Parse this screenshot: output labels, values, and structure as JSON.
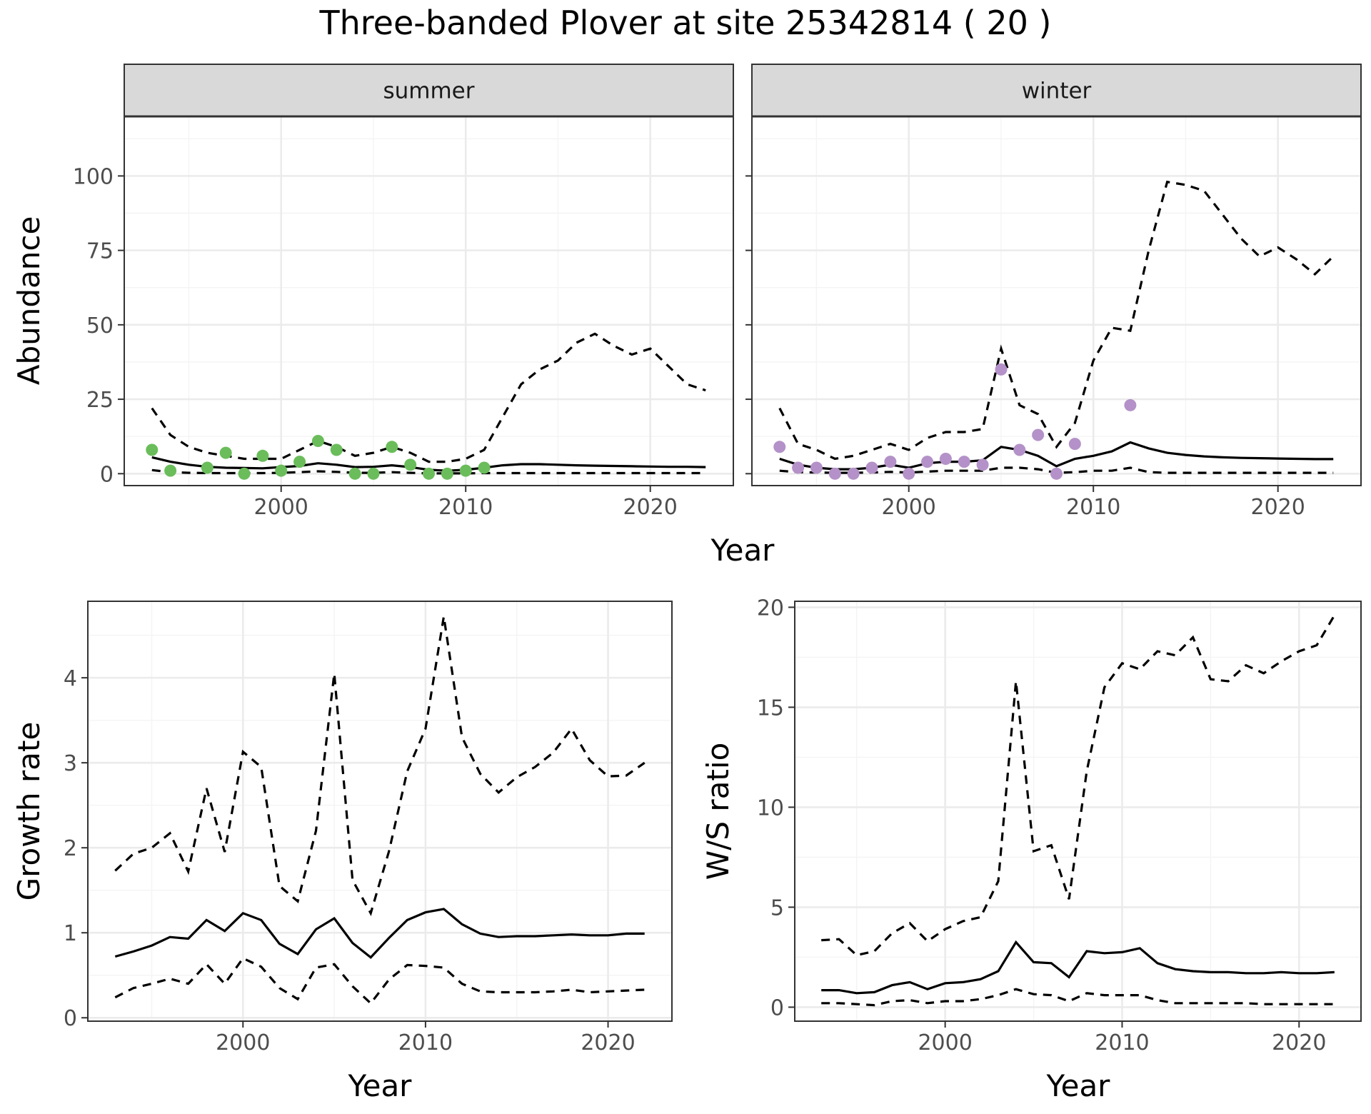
{
  "title": "Three-banded Plover at site 25342814 ( 20 )",
  "colors": {
    "summer_points": "#6ABD5A",
    "winter_points": "#B491C8",
    "strip_bg": "#d9d9d9"
  },
  "chart_data": [
    {
      "type": "line",
      "facet": "summer",
      "xlabel": "Year",
      "ylabel": "Abundance",
      "xlim": [
        1991.5,
        2024.5
      ],
      "ylim": [
        -4,
        120
      ],
      "x_ticks": [
        2000,
        2010,
        2020
      ],
      "y_ticks": [
        0,
        25,
        50,
        75,
        100
      ],
      "series": [
        {
          "role": "estimate",
          "x": [
            1993,
            1994,
            1995,
            1996,
            1997,
            1998,
            1999,
            2000,
            2001,
            2002,
            2003,
            2004,
            2005,
            2006,
            2007,
            2008,
            2009,
            2010,
            2011,
            2012,
            2013,
            2014,
            2015,
            2016,
            2017,
            2018,
            2019,
            2020,
            2021,
            2022,
            2023
          ],
          "values": [
            5.5,
            4,
            3,
            2.3,
            2,
            1.9,
            1.8,
            2.2,
            2.6,
            3.5,
            3,
            2.2,
            2.3,
            2.8,
            2.2,
            1.3,
            1,
            1.3,
            2,
            2.8,
            3.2,
            3.2,
            3,
            2.8,
            2.7,
            2.6,
            2.5,
            2.4,
            2.3,
            2.3,
            2.2
          ]
        },
        {
          "role": "upper",
          "x": [
            1993,
            1994,
            1995,
            1996,
            1997,
            1998,
            1999,
            2000,
            2001,
            2002,
            2003,
            2004,
            2005,
            2006,
            2007,
            2008,
            2009,
            2010,
            2011,
            2012,
            2013,
            2014,
            2015,
            2016,
            2017,
            2018,
            2019,
            2020,
            2021,
            2022,
            2023
          ],
          "values": [
            22,
            13,
            9,
            7,
            6,
            5,
            5,
            5,
            8,
            11,
            9,
            6,
            7,
            9,
            7,
            4,
            4,
            5,
            8,
            19,
            30,
            35,
            38,
            44,
            47,
            43,
            40,
            42,
            36,
            30,
            28
          ]
        },
        {
          "role": "lower",
          "x": [
            1993,
            1994,
            1995,
            1996,
            1997,
            1998,
            1999,
            2000,
            2001,
            2002,
            2003,
            2004,
            2005,
            2006,
            2007,
            2008,
            2009,
            2010,
            2011,
            2012,
            2013,
            2014,
            2015,
            2016,
            2017,
            2018,
            2019,
            2020,
            2021,
            2022,
            2023
          ],
          "values": [
            1.2,
            0.5,
            0.3,
            0.2,
            0.2,
            0.2,
            0.2,
            0.3,
            0.5,
            0.8,
            0.6,
            0.3,
            0.3,
            0.5,
            0.3,
            0.1,
            0.1,
            0.1,
            0.2,
            0.2,
            0.2,
            0.2,
            0.2,
            0.2,
            0.2,
            0.2,
            0.2,
            0.2,
            0.2,
            0.2,
            0.2
          ]
        }
      ],
      "points": {
        "x": [
          1993,
          1994,
          1996,
          1997,
          1998,
          1999,
          2000,
          2001,
          2002,
          2003,
          2004,
          2005,
          2006,
          2007,
          2008,
          2009,
          2010,
          2011
        ],
        "y": [
          8,
          1,
          2,
          7,
          0,
          6,
          1,
          4,
          11,
          8,
          0,
          0,
          9,
          3,
          0,
          0,
          1,
          2
        ]
      }
    },
    {
      "type": "line",
      "facet": "winter",
      "xlabel": "Year",
      "ylabel": "Abundance",
      "xlim": [
        1991.5,
        2024.5
      ],
      "ylim": [
        -4,
        120
      ],
      "x_ticks": [
        2000,
        2010,
        2020
      ],
      "y_ticks": [
        0,
        25,
        50,
        75,
        100
      ],
      "series": [
        {
          "role": "estimate",
          "x": [
            1993,
            1994,
            1995,
            1996,
            1997,
            1998,
            1999,
            2000,
            2001,
            2002,
            2003,
            2004,
            2005,
            2006,
            2007,
            2008,
            2009,
            2010,
            2011,
            2012,
            2013,
            2014,
            2015,
            2016,
            2017,
            2018,
            2019,
            2020,
            2021,
            2022,
            2023
          ],
          "values": [
            5,
            3,
            2,
            1.5,
            1.5,
            2,
            3,
            2,
            3.5,
            4,
            4,
            4.5,
            9,
            8,
            6,
            2.5,
            5,
            6,
            7.5,
            10.5,
            8.5,
            7,
            6.3,
            5.8,
            5.5,
            5.3,
            5.2,
            5.1,
            5,
            4.9,
            4.9
          ]
        },
        {
          "role": "upper",
          "x": [
            1993,
            1994,
            1995,
            1996,
            1997,
            1998,
            1999,
            2000,
            2001,
            2002,
            2003,
            2004,
            2005,
            2006,
            2007,
            2008,
            2009,
            2010,
            2011,
            2012,
            2013,
            2014,
            2015,
            2016,
            2017,
            2018,
            2019,
            2020,
            2021,
            2022,
            2023
          ],
          "values": [
            22,
            10,
            8,
            5,
            6,
            8,
            10,
            8,
            12,
            14,
            14,
            15,
            42,
            23,
            20,
            9,
            17,
            38,
            49,
            48,
            75,
            98,
            97,
            95,
            87,
            79,
            73,
            76,
            72,
            67,
            73
          ]
        },
        {
          "role": "lower",
          "x": [
            1993,
            1994,
            1995,
            1996,
            1997,
            1998,
            1999,
            2000,
            2001,
            2002,
            2003,
            2004,
            2005,
            2006,
            2007,
            2008,
            2009,
            2010,
            2011,
            2012,
            2013,
            2014,
            2015,
            2016,
            2017,
            2018,
            2019,
            2020,
            2021,
            2022,
            2023
          ],
          "values": [
            1,
            0.5,
            0.4,
            0.3,
            0.3,
            0.4,
            0.6,
            0.4,
            0.7,
            1,
            1,
            1,
            2,
            2,
            1.5,
            0.3,
            0.5,
            1,
            1,
            2,
            0.5,
            0.3,
            0.3,
            0.3,
            0.3,
            0.3,
            0.3,
            0.3,
            0.3,
            0.3,
            0.3
          ]
        }
      ],
      "points": {
        "x": [
          1993,
          1994,
          1995,
          1996,
          1997,
          1998,
          1999,
          2000,
          2001,
          2002,
          2003,
          2004,
          2005,
          2006,
          2007,
          2008,
          2009,
          2012
        ],
        "y": [
          9,
          2,
          2,
          0,
          0,
          2,
          4,
          0,
          4,
          5,
          4,
          3,
          35,
          8,
          13,
          0,
          10,
          23
        ]
      }
    },
    {
      "type": "line",
      "xlabel": "Year",
      "ylabel": "Growth rate",
      "xlim": [
        1991.5,
        2023.5
      ],
      "ylim": [
        -0.04,
        4.9
      ],
      "x_ticks": [
        2000,
        2010,
        2020
      ],
      "y_ticks": [
        0,
        1,
        2,
        3,
        4
      ],
      "series": [
        {
          "role": "estimate",
          "x": [
            1993,
            1994,
            1995,
            1996,
            1997,
            1998,
            1999,
            2000,
            2001,
            2002,
            2003,
            2004,
            2005,
            2006,
            2007,
            2008,
            2009,
            2010,
            2011,
            2012,
            2013,
            2014,
            2015,
            2016,
            2017,
            2018,
            2019,
            2020,
            2021,
            2022
          ],
          "values": [
            0.72,
            0.78,
            0.85,
            0.95,
            0.93,
            1.15,
            1.02,
            1.23,
            1.15,
            0.87,
            0.75,
            1.04,
            1.17,
            0.88,
            0.71,
            0.94,
            1.15,
            1.24,
            1.28,
            1.1,
            0.99,
            0.95,
            0.96,
            0.96,
            0.97,
            0.98,
            0.97,
            0.97,
            0.99,
            0.99
          ]
        },
        {
          "role": "upper",
          "x": [
            1993,
            1994,
            1995,
            1996,
            1997,
            1998,
            1999,
            2000,
            2001,
            2002,
            2003,
            2004,
            2005,
            2006,
            2007,
            2008,
            2009,
            2010,
            2011,
            2012,
            2013,
            2014,
            2015,
            2016,
            2017,
            2018,
            2019,
            2020,
            2021,
            2022
          ],
          "values": [
            1.73,
            1.93,
            2.0,
            2.17,
            1.72,
            2.7,
            1.95,
            3.13,
            2.95,
            1.55,
            1.37,
            2.2,
            4.05,
            1.62,
            1.23,
            1.96,
            2.9,
            3.4,
            4.72,
            3.3,
            2.87,
            2.65,
            2.83,
            2.95,
            3.12,
            3.4,
            3.03,
            2.84,
            2.85,
            3.0
          ]
        },
        {
          "role": "lower",
          "x": [
            1993,
            1994,
            1995,
            1996,
            1997,
            1998,
            1999,
            2000,
            2001,
            2002,
            2003,
            2004,
            2005,
            2006,
            2007,
            2008,
            2009,
            2010,
            2011,
            2012,
            2013,
            2014,
            2015,
            2016,
            2017,
            2018,
            2019,
            2020,
            2021,
            2022
          ],
          "values": [
            0.24,
            0.35,
            0.4,
            0.46,
            0.4,
            0.63,
            0.4,
            0.7,
            0.6,
            0.35,
            0.22,
            0.59,
            0.63,
            0.37,
            0.17,
            0.45,
            0.62,
            0.61,
            0.59,
            0.4,
            0.31,
            0.3,
            0.3,
            0.3,
            0.31,
            0.33,
            0.3,
            0.31,
            0.32,
            0.33
          ]
        }
      ]
    },
    {
      "type": "line",
      "xlabel": "Year",
      "ylabel": "W/S ratio",
      "xlim": [
        1991.5,
        2023.5
      ],
      "ylim": [
        -0.7,
        20.3
      ],
      "x_ticks": [
        2000,
        2010,
        2020
      ],
      "y_ticks": [
        0,
        5,
        10,
        15,
        20
      ],
      "series": [
        {
          "role": "estimate",
          "x": [
            1993,
            1994,
            1995,
            1996,
            1997,
            1998,
            1999,
            2000,
            2001,
            2002,
            2003,
            2004,
            2005,
            2006,
            2007,
            2008,
            2009,
            2010,
            2011,
            2012,
            2013,
            2014,
            2015,
            2016,
            2017,
            2018,
            2019,
            2020,
            2021,
            2022
          ],
          "values": [
            0.85,
            0.85,
            0.7,
            0.75,
            1.1,
            1.25,
            0.9,
            1.2,
            1.25,
            1.4,
            1.8,
            3.25,
            2.25,
            2.2,
            1.5,
            2.8,
            2.7,
            2.75,
            2.95,
            2.2,
            1.9,
            1.8,
            1.75,
            1.75,
            1.7,
            1.7,
            1.75,
            1.7,
            1.7,
            1.75
          ]
        },
        {
          "role": "upper",
          "x": [
            1993,
            1994,
            1995,
            1996,
            1997,
            1998,
            1999,
            2000,
            2001,
            2002,
            2003,
            2004,
            2005,
            2006,
            2007,
            2008,
            2009,
            2010,
            2011,
            2012,
            2013,
            2014,
            2015,
            2016,
            2017,
            2018,
            2019,
            2020,
            2021,
            2022
          ],
          "values": [
            3.35,
            3.4,
            2.6,
            2.8,
            3.7,
            4.2,
            3.3,
            3.9,
            4.3,
            4.5,
            6.3,
            16.3,
            7.8,
            8.1,
            5.4,
            11.8,
            16.0,
            17.2,
            16.9,
            17.8,
            17.6,
            18.5,
            16.4,
            16.3,
            17.1,
            16.7,
            17.3,
            17.8,
            18.1,
            19.6
          ]
        },
        {
          "role": "lower",
          "x": [
            1993,
            1994,
            1995,
            1996,
            1997,
            1998,
            1999,
            2000,
            2001,
            2002,
            2003,
            2004,
            2005,
            2006,
            2007,
            2008,
            2009,
            2010,
            2011,
            2012,
            2013,
            2014,
            2015,
            2016,
            2017,
            2018,
            2019,
            2020,
            2021,
            2022
          ],
          "values": [
            0.2,
            0.2,
            0.15,
            0.1,
            0.3,
            0.35,
            0.2,
            0.3,
            0.3,
            0.4,
            0.6,
            0.9,
            0.65,
            0.6,
            0.3,
            0.7,
            0.6,
            0.6,
            0.6,
            0.35,
            0.2,
            0.2,
            0.2,
            0.2,
            0.2,
            0.15,
            0.15,
            0.15,
            0.15,
            0.15
          ]
        }
      ]
    }
  ]
}
